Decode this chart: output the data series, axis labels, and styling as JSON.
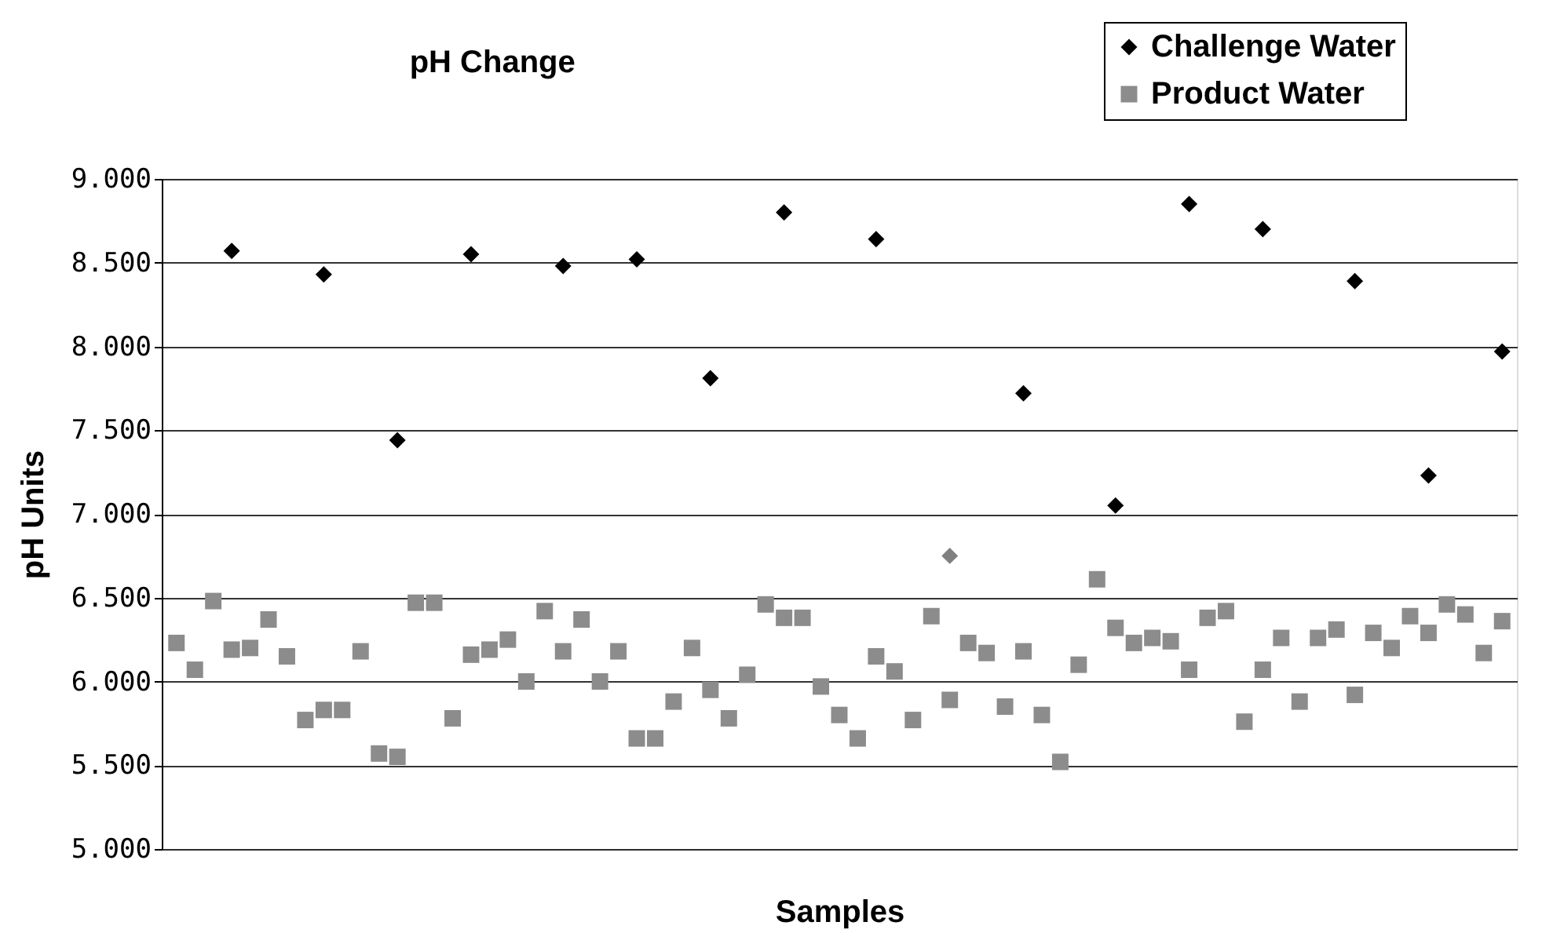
{
  "chart_data": {
    "type": "scatter",
    "title": "pH Change",
    "xlabel": "Samples",
    "ylabel": "pH Units",
    "categories": [
      null,
      null,
      null,
      null,
      null,
      null,
      null,
      null,
      null,
      null,
      null,
      null,
      null,
      null,
      null,
      null,
      null,
      null,
      null,
      null,
      null,
      null,
      null,
      null,
      null,
      null,
      null,
      null,
      null,
      null,
      null,
      null,
      null,
      null,
      null,
      null,
      null,
      null,
      null,
      null,
      null,
      null,
      null,
      null,
      null,
      null,
      null,
      null,
      null,
      null,
      null,
      null,
      null,
      null,
      null,
      null,
      null,
      null,
      null,
      null,
      null,
      null,
      null,
      null,
      null,
      null,
      null,
      null,
      null,
      null,
      null,
      null,
      null
    ],
    "ylim": [
      5,
      9
    ],
    "yticks": [
      {
        "value": 5,
        "label": "5.000"
      },
      {
        "value": 5.5,
        "label": "5.500"
      },
      {
        "value": 6,
        "label": "6.000"
      },
      {
        "value": 6.5,
        "label": "6.500"
      },
      {
        "value": 7,
        "label": "7.000"
      },
      {
        "value": 7.5,
        "label": "7.500"
      },
      {
        "value": 8,
        "label": "8.000"
      },
      {
        "value": 8.5,
        "label": "8.500"
      },
      {
        "value": 9,
        "label": "9.000"
      }
    ],
    "tick_labels": "y",
    "grid": "y",
    "legend": "top right",
    "series": [
      {
        "name": "Challenge Water",
        "color": "#000000",
        "marker": "diamond",
        "values": [
          null,
          null,
          null,
          8.57,
          null,
          null,
          null,
          null,
          8.43,
          null,
          null,
          null,
          7.44,
          null,
          null,
          null,
          8.55,
          null,
          null,
          null,
          null,
          8.48,
          null,
          null,
          null,
          8.52,
          null,
          null,
          null,
          7.81,
          null,
          null,
          null,
          8.8,
          null,
          null,
          null,
          null,
          8.64,
          null,
          null,
          null,
          6.75,
          null,
          null,
          null,
          7.72,
          null,
          null,
          null,
          null,
          7.05,
          null,
          null,
          null,
          8.85,
          null,
          null,
          null,
          8.7,
          null,
          null,
          null,
          null,
          8.39,
          null,
          null,
          null,
          7.23,
          null,
          null,
          null,
          7.97
        ],
        "colors": [
          "#000000",
          "#000000",
          "#000000",
          "#000000",
          "#000000",
          "#000000",
          "#000000",
          "#000000",
          "#000000",
          "#000000",
          "#000000",
          "#000000",
          "#000000",
          "#000000",
          "#000000",
          "#000000",
          "#000000",
          "#000000",
          "#000000",
          "#000000",
          "#000000",
          "#000000",
          "#000000",
          "#000000",
          "#000000",
          "#000000",
          "#000000",
          "#000000",
          "#000000",
          "#000000",
          "#000000",
          "#000000",
          "#000000",
          "#000000",
          "#000000",
          "#000000",
          "#000000",
          "#000000",
          "#000000",
          "#000000",
          "#000000",
          "#000000",
          "#808080",
          "#000000",
          "#000000",
          "#000000",
          "#000000",
          "#000000",
          "#000000",
          "#000000",
          "#000000",
          "#000000",
          "#000000",
          "#000000",
          "#000000",
          "#000000",
          "#000000",
          "#000000",
          "#000000",
          "#000000",
          "#000000",
          "#000000",
          "#000000",
          "#000000",
          "#000000",
          "#000000",
          "#000000",
          "#000000",
          "#000000",
          "#000000",
          "#000000",
          "#000000",
          "#000000"
        ]
      },
      {
        "name": "Product Water",
        "color": "#8c8c8c",
        "marker": "square",
        "values": [
          6.23,
          6.07,
          6.48,
          6.19,
          6.2,
          6.37,
          6.15,
          5.77,
          5.83,
          5.83,
          6.18,
          5.57,
          5.55,
          6.47,
          6.47,
          5.78,
          6.16,
          6.19,
          6.25,
          6.0,
          6.42,
          6.18,
          6.37,
          6.0,
          6.18,
          5.66,
          5.66,
          5.88,
          6.2,
          5.95,
          5.78,
          6.04,
          6.46,
          6.38,
          6.38,
          5.97,
          5.8,
          5.66,
          6.15,
          6.06,
          5.77,
          6.39,
          5.89,
          6.23,
          6.17,
          5.85,
          6.18,
          5.8,
          5.52,
          6.1,
          6.61,
          6.32,
          6.23,
          6.26,
          6.24,
          6.07,
          6.38,
          6.42,
          5.76,
          6.07,
          6.26,
          5.88,
          6.26,
          6.31,
          5.92,
          6.29,
          6.2,
          6.39,
          6.29,
          6.46,
          6.4,
          6.17,
          6.36
        ]
      }
    ]
  }
}
